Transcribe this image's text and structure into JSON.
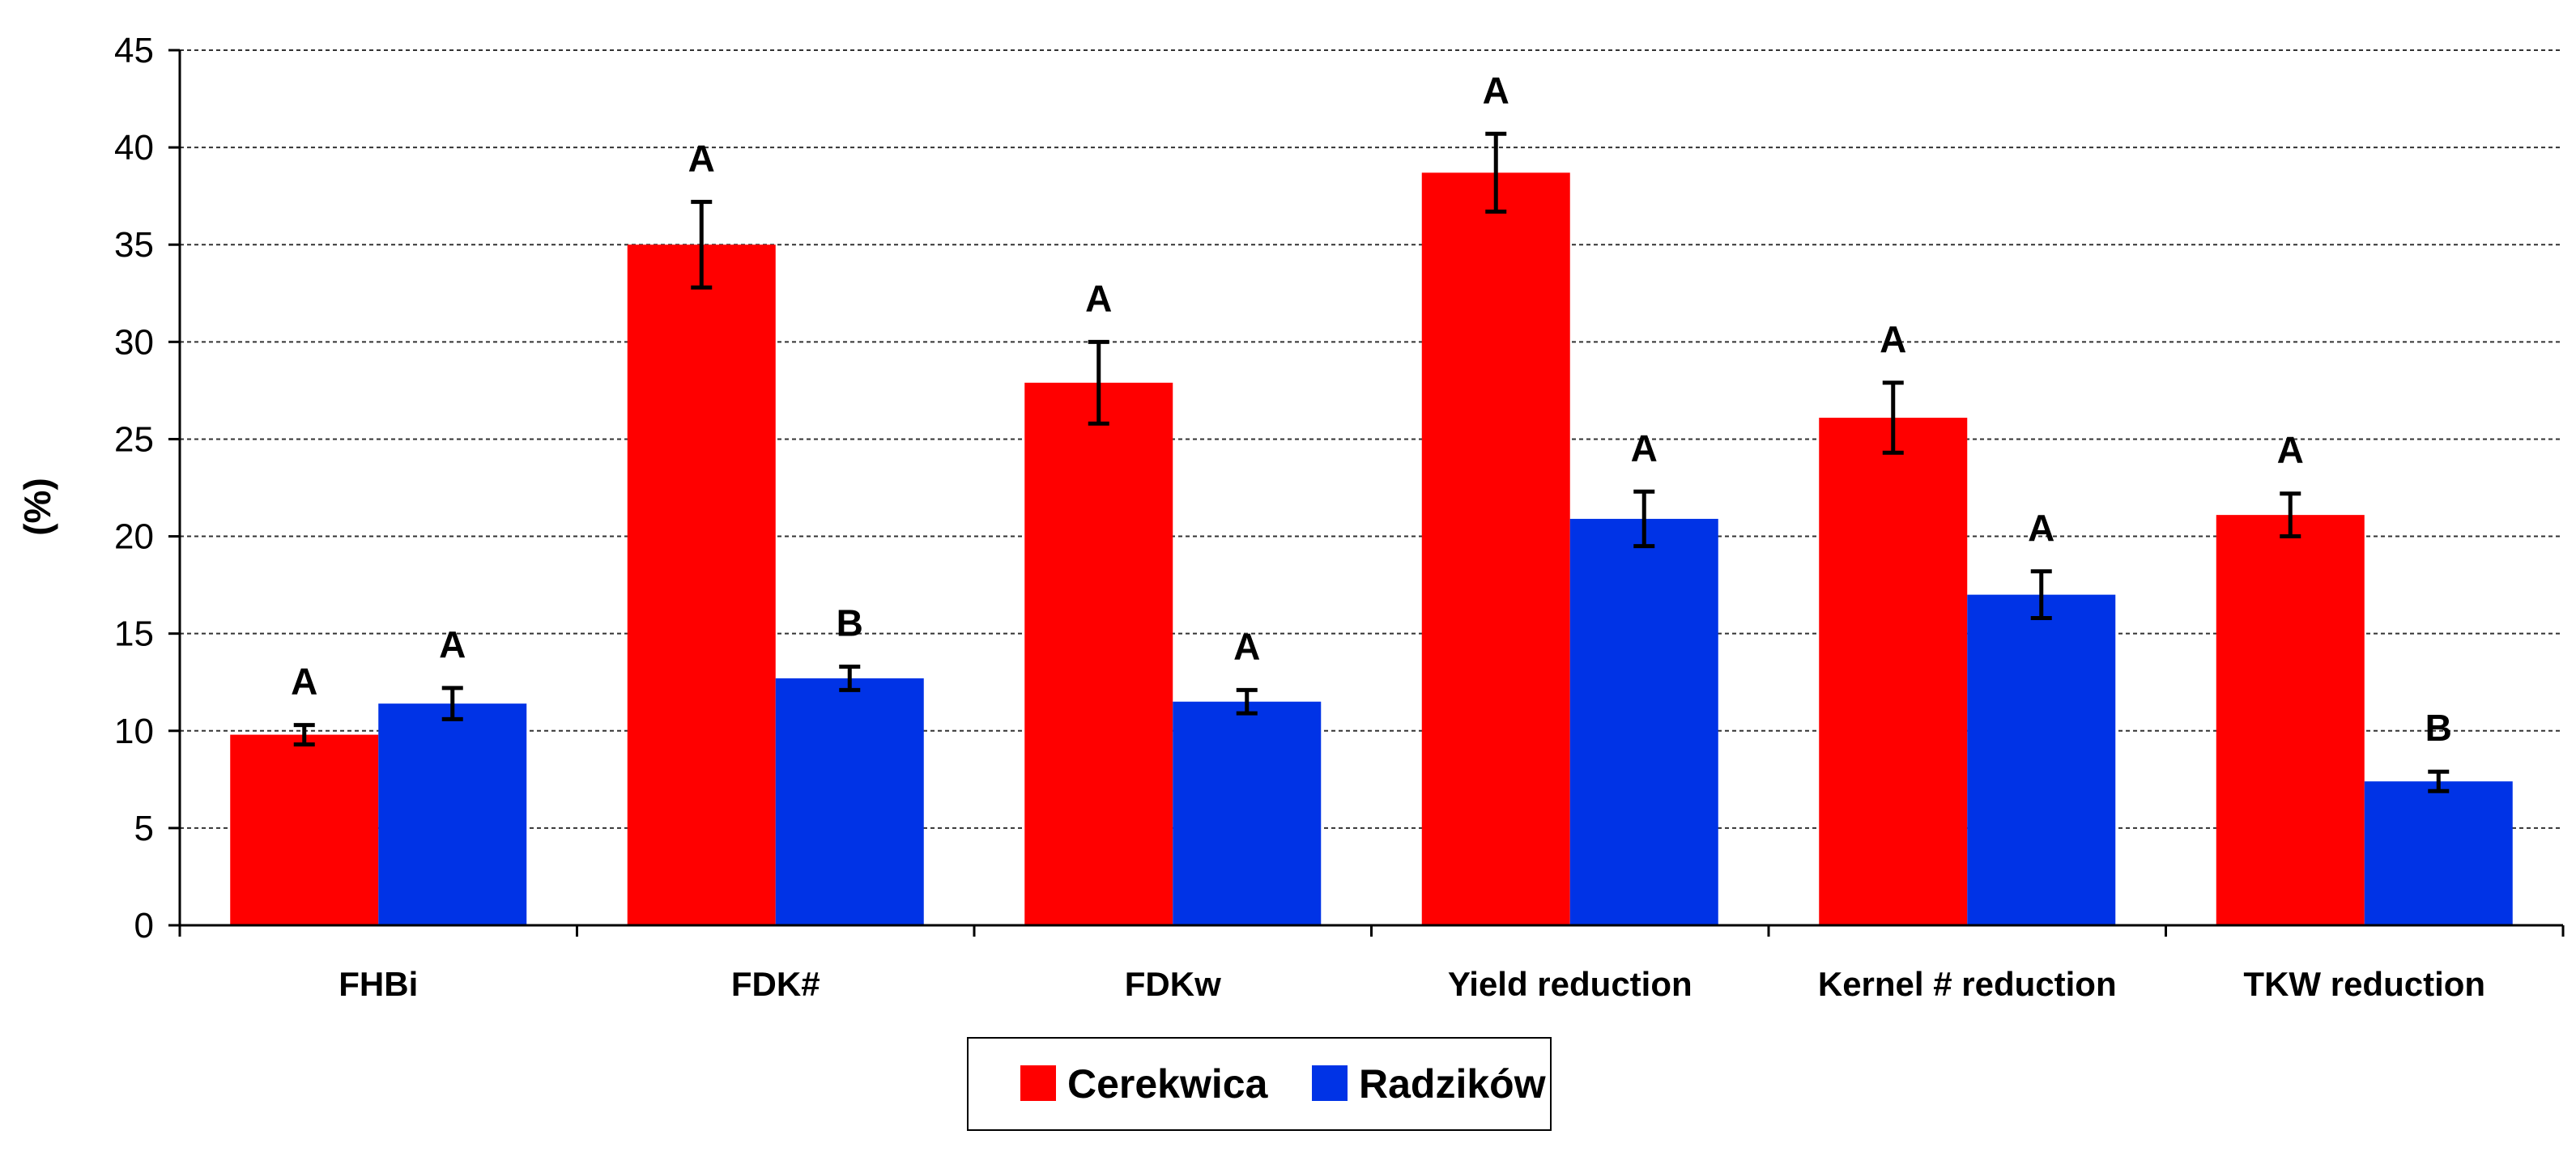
{
  "chart_data": {
    "type": "bar",
    "title": "",
    "xlabel": "",
    "ylabel": "(%)",
    "ylim": [
      0,
      45
    ],
    "yticks": [
      0,
      5,
      10,
      15,
      20,
      25,
      30,
      35,
      40,
      45
    ],
    "grid": true,
    "legend_position": "bottom-center",
    "categories": [
      "FHBi",
      "FDK#",
      "FDKw",
      "Yield reduction",
      "Kernel # reduction",
      "TKW reduction"
    ],
    "series": [
      {
        "name": "Cerekwica",
        "color": "#ff0000",
        "values": [
          9.8,
          35.0,
          27.9,
          38.7,
          26.1,
          21.1
        ],
        "errors": [
          0.5,
          2.2,
          2.1,
          2.0,
          1.8,
          1.1
        ],
        "significance": [
          "A",
          "A",
          "A",
          "A",
          "A",
          "A"
        ]
      },
      {
        "name": "Radzików",
        "color": "#0033e6",
        "values": [
          11.4,
          12.7,
          11.5,
          20.9,
          17.0,
          7.4
        ],
        "errors": [
          0.8,
          0.6,
          0.6,
          1.4,
          1.2,
          0.5
        ],
        "significance": [
          "A",
          "B",
          "A",
          "A",
          "A",
          "B"
        ]
      }
    ]
  }
}
